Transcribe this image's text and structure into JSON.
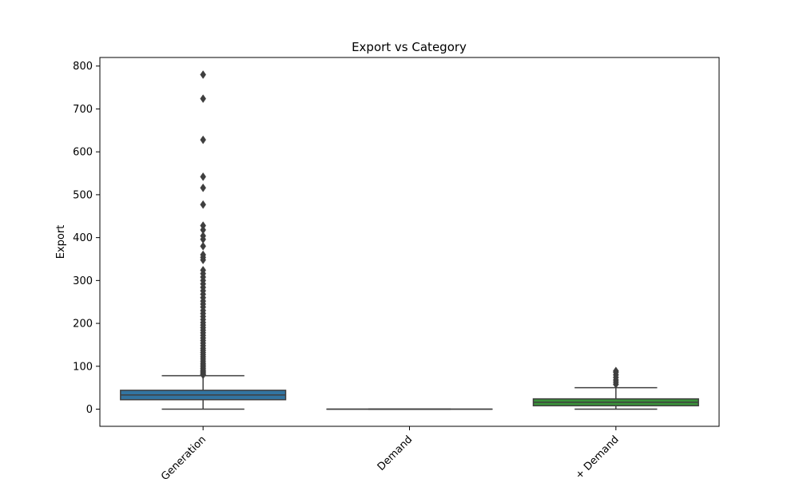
{
  "chart_data": {
    "type": "box",
    "title": "Export vs Category",
    "xlabel": "",
    "ylabel": "Export",
    "ylim": [
      -40,
      820
    ],
    "yticks": [
      0,
      100,
      200,
      300,
      400,
      500,
      600,
      700,
      800
    ],
    "categories": [
      "Generation",
      "Demand",
      "Generation + Demand"
    ],
    "category_tick_labels": [
      "Generation",
      "Demand",
      "+ Demand"
    ],
    "grid": false,
    "legend": "none",
    "colors": [
      "#3274a1",
      "#e1812c",
      "#3a923a"
    ],
    "boxes": [
      {
        "category": "Generation",
        "whisker_low": 0,
        "q1": 22,
        "median": 33,
        "q3": 44,
        "whisker_high": 78,
        "outliers": [
          780,
          724,
          628,
          542,
          516,
          477,
          428,
          418,
          404,
          396,
          380,
          360,
          354,
          348,
          324,
          316,
          308,
          300,
          292,
          284,
          276,
          268,
          260,
          252,
          245,
          238,
          230,
          223,
          216,
          209,
          202,
          196,
          190,
          184,
          178,
          172,
          166,
          160,
          154,
          148,
          142,
          137,
          132,
          127,
          122,
          117,
          112,
          107,
          103,
          99,
          95,
          91,
          88,
          85,
          82,
          80
        ]
      },
      {
        "category": "Demand",
        "whisker_low": 0,
        "q1": 0,
        "median": 0,
        "q3": 0,
        "whisker_high": 0,
        "outliers": []
      },
      {
        "category": "Generation + Demand",
        "whisker_low": 0,
        "q1": 8,
        "median": 16,
        "q3": 24,
        "whisker_high": 50,
        "outliers": [
          58,
          63,
          68,
          74,
          80,
          86,
          89
        ]
      }
    ]
  }
}
